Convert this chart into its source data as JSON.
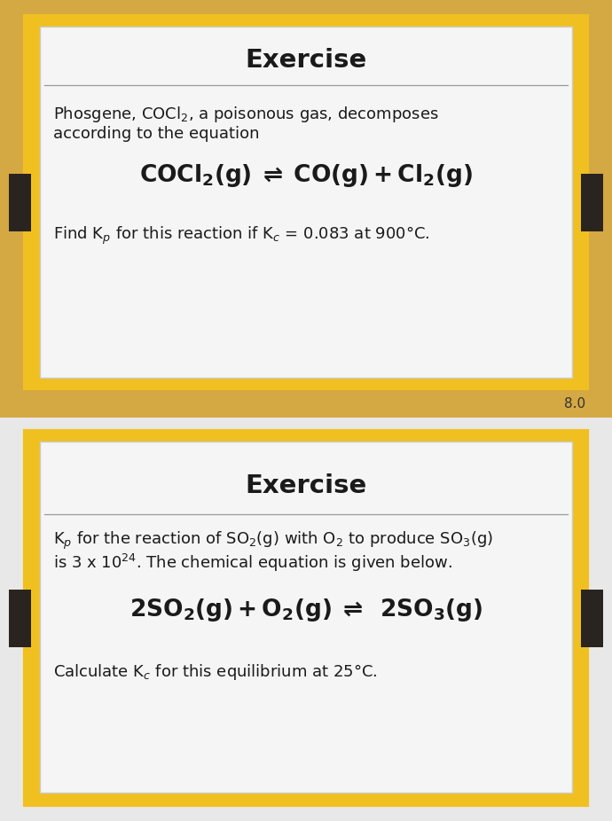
{
  "bg_top": "#d4a843",
  "bg_bottom": "#e8e8e8",
  "card_bg": "#f5f5f5",
  "text_color": "#1a1a1a",
  "title_color": "#1a1a1a",
  "border_color": "#f0c020",
  "tab_color": "#2a2420",
  "divider_color": "#999999",
  "answer_color": "#333333",
  "panel1": {
    "title": "Exercise",
    "line1": "Phosgene, COCl$_2$, a poisonous gas, decomposes",
    "line2": "according to the equation",
    "equation": "$\\mathbf{COCl_2(g)\\;\\rightleftharpoons\\;CO(g)+Cl_2(g)}$",
    "question": "Find K$_p$ for this reaction if K$_c$ = 0.083 at 900°C.",
    "answer": "8.0"
  },
  "panel2": {
    "title": "Exercise",
    "line1": "K$_p$ for the reaction of SO$_2$(g) with O$_2$ to produce SO$_3$(g)",
    "line2": "is 3 x 10$^{24}$. The chemical equation is given below.",
    "equation": "$\\mathbf{2SO_2(g)+O_2(g)\\;\\rightleftharpoons\\;\\;2SO_3(g)}$",
    "question": "Calculate K$_c$ for this equilibrium at 25°C."
  }
}
